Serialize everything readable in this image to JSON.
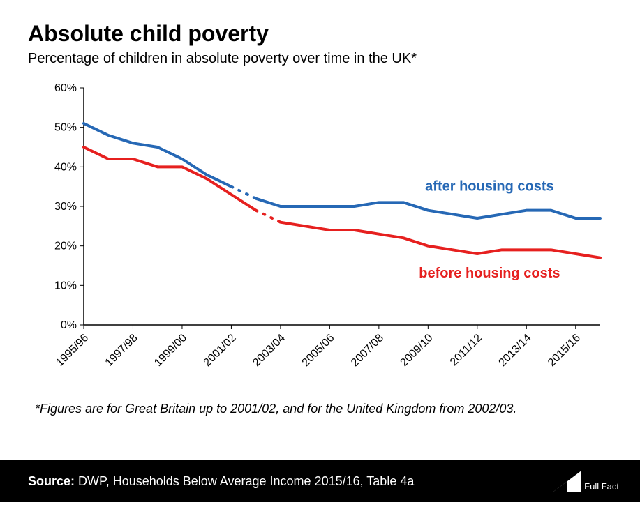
{
  "title": "Absolute child poverty",
  "subtitle": "Percentage of children in absolute poverty over time in the UK*",
  "footnote": "*Figures are for Great Britain up to 2001/02, and for the United Kingdom from 2002/03.",
  "source": {
    "label": "Source:",
    "text": " DWP, Households Below Average Income 2015/16, Table 4a"
  },
  "logo_text": "Full Fact",
  "chart": {
    "type": "line",
    "background_color": "#ffffff",
    "axis_color": "#000000",
    "text_color": "#000000",
    "ylim": [
      0,
      60
    ],
    "ytick_step": 10,
    "ytick_suffix": "%",
    "xlabels": [
      "1995/96",
      "1997/98",
      "1999/00",
      "2001/02",
      "2003/04",
      "2005/06",
      "2007/08",
      "2009/10",
      "2011/12",
      "2013/14",
      "2015/16"
    ],
    "xlabel_rotation": -45,
    "xlabel_step": 2,
    "title_fontsize": 32,
    "subtitle_fontsize": 20,
    "label_fontsize": 16,
    "series_label_fontsize": 20,
    "line_width": 4,
    "series": [
      {
        "name": "after housing costs",
        "color": "#2668b5",
        "label_color": "#2668b5",
        "label_pos": {
          "x_index": 16.5,
          "y": 34
        },
        "segments": [
          {
            "dash": false,
            "points": [
              [
                0,
                51
              ],
              [
                1,
                48
              ],
              [
                2,
                46
              ],
              [
                3,
                45
              ],
              [
                4,
                42
              ],
              [
                5,
                38
              ],
              [
                6,
                35
              ]
            ]
          },
          {
            "dash": true,
            "points": [
              [
                6,
                35
              ],
              [
                7,
                32
              ]
            ]
          },
          {
            "dash": false,
            "points": [
              [
                7,
                32
              ],
              [
                8,
                30
              ],
              [
                9,
                30
              ],
              [
                10,
                30
              ],
              [
                11,
                30
              ],
              [
                12,
                31
              ],
              [
                13,
                31
              ],
              [
                14,
                29
              ],
              [
                15,
                28
              ],
              [
                16,
                27
              ],
              [
                17,
                28
              ],
              [
                18,
                29
              ],
              [
                19,
                29
              ],
              [
                20,
                27
              ],
              [
                21,
                27
              ]
            ]
          }
        ]
      },
      {
        "name": "before housing costs",
        "color": "#e6201f",
        "label_color": "#e6201f",
        "label_pos": {
          "x_index": 16.5,
          "y": 12
        },
        "segments": [
          {
            "dash": false,
            "points": [
              [
                0,
                45
              ],
              [
                1,
                42
              ],
              [
                2,
                42
              ],
              [
                3,
                40
              ],
              [
                4,
                40
              ],
              [
                5,
                37
              ],
              [
                6,
                33
              ],
              [
                7,
                29
              ]
            ]
          },
          {
            "dash": true,
            "points": [
              [
                7,
                29
              ],
              [
                8,
                26
              ]
            ]
          },
          {
            "dash": false,
            "points": [
              [
                8,
                26
              ],
              [
                9,
                25
              ],
              [
                10,
                24
              ],
              [
                11,
                24
              ],
              [
                12,
                23
              ],
              [
                13,
                22
              ],
              [
                14,
                20
              ],
              [
                15,
                19
              ],
              [
                16,
                18
              ],
              [
                17,
                19
              ],
              [
                18,
                19
              ],
              [
                19,
                19
              ],
              [
                20,
                18
              ],
              [
                21,
                17
              ]
            ]
          }
        ]
      }
    ]
  }
}
